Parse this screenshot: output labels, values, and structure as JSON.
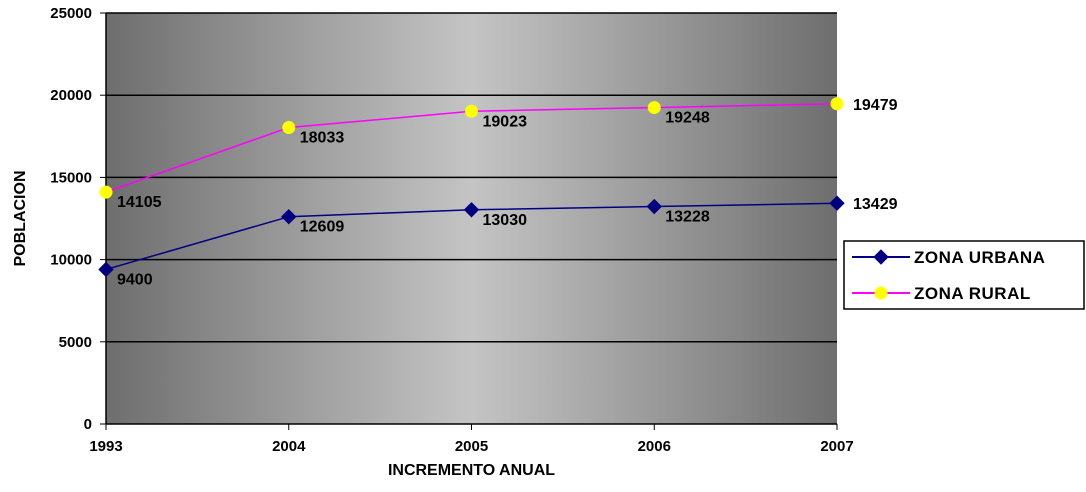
{
  "chart_data": {
    "type": "line",
    "title": "",
    "xlabel": "INCREMENTO ANUAL",
    "ylabel": "POBLACION",
    "categories": [
      "1993",
      "2004",
      "2005",
      "2006",
      "2007"
    ],
    "ylim": [
      0,
      25000
    ],
    "yticks": [
      0,
      5000,
      10000,
      15000,
      20000,
      25000
    ],
    "grid": "horizontal",
    "legend_position": "right",
    "plot_background": "horizontal gradient dark gray to light gray",
    "series": [
      {
        "name": "ZONA URBANA",
        "values": [
          9400,
          12609,
          13030,
          13228,
          13429
        ],
        "color": "#000080",
        "marker": "diamond",
        "marker_color": "#000080"
      },
      {
        "name": "ZONA RURAL",
        "values": [
          14105,
          18033,
          19023,
          19248,
          19479
        ],
        "color": "#ff00ff",
        "marker": "circle",
        "marker_color": "#ffff00"
      }
    ]
  }
}
